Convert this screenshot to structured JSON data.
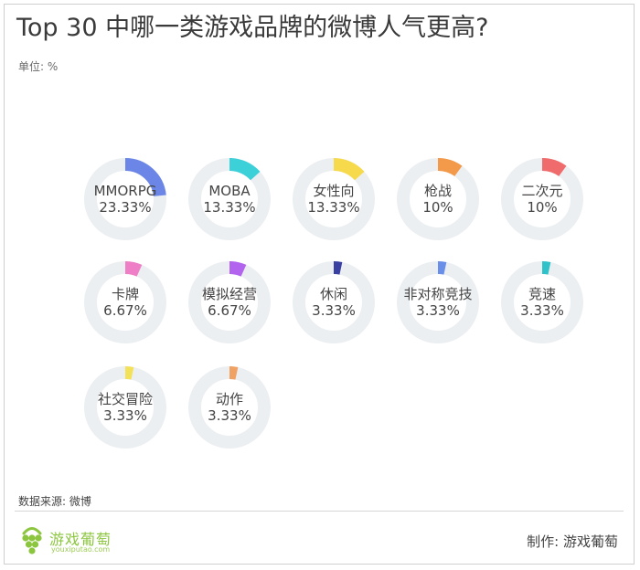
{
  "header": {
    "title": "Top 30 中哪一类游戏品牌的微博人气更高?",
    "unit": "单位: %"
  },
  "footer": {
    "source": "数据来源: 微博",
    "brand_name": "游戏葡萄",
    "brand_domain": "youxiputao.com",
    "credit": "制作:  游戏葡萄"
  },
  "colors": {
    "track": "#eceff1",
    "brand_green": "#8cc63f"
  },
  "chart_data": {
    "type": "donut",
    "title": "Top 30 中哪一类游戏品牌的微博人气更高?",
    "unit": "%",
    "categories": [
      "MMORPG",
      "MOBA",
      "女性向",
      "枪战",
      "二次元",
      "卡牌",
      "模拟经营",
      "休闲",
      "非对称竞技",
      "竞速",
      "社交冒险",
      "动作"
    ],
    "values": [
      23.33,
      13.33,
      13.33,
      10,
      10,
      6.67,
      6.67,
      3.33,
      3.33,
      3.33,
      3.33,
      3.33
    ],
    "value_labels": [
      "23.33%",
      "13.33%",
      "13.33%",
      "10%",
      "10%",
      "6.67%",
      "6.67%",
      "3.33%",
      "3.33%",
      "3.33%",
      "3.33%",
      "3.33%"
    ],
    "colors": [
      "#6b86e6",
      "#3cd0d8",
      "#f7d94c",
      "#f29a4a",
      "#f06b6b",
      "#ee7fc6",
      "#b364ee",
      "#3a3fa2",
      "#6a8fe8",
      "#2fc2c9",
      "#f4e15a",
      "#f0a264"
    ]
  }
}
